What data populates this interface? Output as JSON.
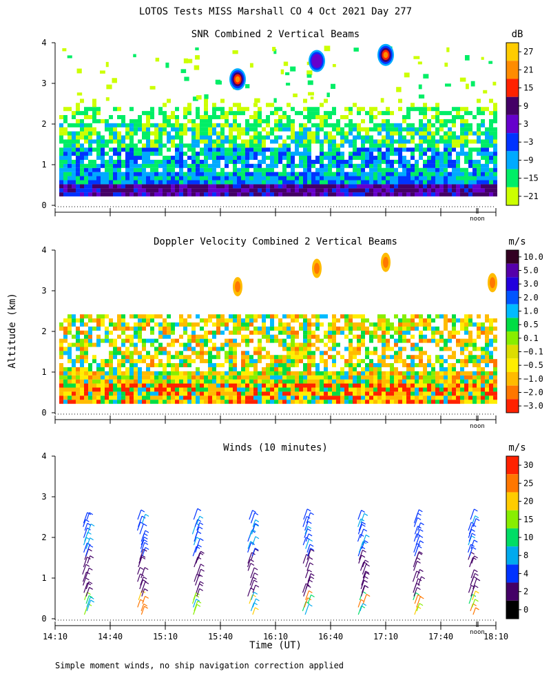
{
  "figure_title": "LOTOS Tests MISS Marshall CO   4 Oct 2021 Day 277",
  "y_axis_label": "Altitude (km)",
  "x_axis_label": "Time (UT)",
  "footnote": "Simple moment winds, no ship navigation correction applied",
  "noon_label": "noon",
  "time_ticks": [
    "14:10",
    "14:40",
    "15:10",
    "15:40",
    "16:10",
    "16:40",
    "17:10",
    "17:40",
    "18:10"
  ],
  "alt_ticks": [
    "0",
    "1",
    "2",
    "3",
    "4"
  ],
  "chart_data": [
    {
      "type": "heatmap",
      "title": "SNR Combined 2 Vertical Beams",
      "unit": "dB",
      "ylabel": "",
      "ylim": [
        0,
        4
      ],
      "xlim": [
        "14:10",
        "18:10"
      ],
      "colorbar": {
        "labels": [
          "27",
          "21",
          "15",
          "9",
          "3",
          "−3",
          "−9",
          "−15",
          "−21"
        ],
        "colors": [
          "#ffcc00",
          "#ff8c00",
          "#ff2200",
          "#440066",
          "#6600cc",
          "#0033ff",
          "#00aaff",
          "#00ee66",
          "#ccff00"
        ]
      },
      "features": [
        {
          "time": "15:45",
          "alt_km": 3.1,
          "peak_db": 15
        },
        {
          "time": "16:35",
          "alt_km": 3.55,
          "peak_db": 9
        },
        {
          "time": "17:10",
          "alt_km": 3.7,
          "peak_db": 21
        }
      ]
    },
    {
      "type": "heatmap",
      "title": "Doppler Velocity Combined 2 Vertical Beams",
      "unit": "m/s",
      "ylabel": "Altitude (km)",
      "ylim": [
        0,
        4
      ],
      "xlim": [
        "14:10",
        "18:10"
      ],
      "colorbar": {
        "labels": [
          "10.0",
          "5.0",
          "3.0",
          "2.0",
          "1.0",
          "0.5",
          "0.1",
          "−0.1",
          "−0.5",
          "−1.0",
          "−2.0",
          "−3.0"
        ],
        "colors": [
          "#330022",
          "#5500aa",
          "#2200dd",
          "#0055ff",
          "#00bbff",
          "#00dd44",
          "#88ee00",
          "#dddd00",
          "#ffee00",
          "#ffbb00",
          "#ff7700",
          "#ff2200"
        ]
      }
    },
    {
      "type": "wind_barbs",
      "title": "Winds (10 minutes)",
      "unit": "m/s",
      "xlabel": "Time (UT)",
      "ylim": [
        0,
        4
      ],
      "xlim": [
        "14:10",
        "18:10"
      ],
      "colorbar": {
        "labels": [
          "30",
          "25",
          "20",
          "15",
          "10",
          "8",
          "4",
          "2",
          "0"
        ],
        "colors": [
          "#ff2200",
          "#ff7700",
          "#ffcc00",
          "#88ee00",
          "#00dd66",
          "#00aaee",
          "#0033ff",
          "#440066",
          "#000000"
        ]
      },
      "profile_times": [
        "14:30",
        "15:00",
        "15:30",
        "16:00",
        "16:30",
        "17:00",
        "17:30",
        "18:00"
      ]
    }
  ]
}
